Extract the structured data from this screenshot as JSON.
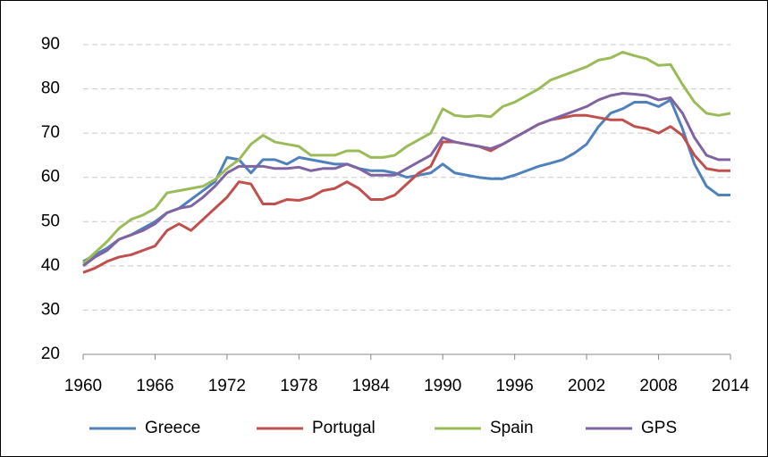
{
  "chart_data": {
    "type": "line",
    "x": [
      1960,
      1961,
      1962,
      1963,
      1964,
      1965,
      1966,
      1967,
      1968,
      1969,
      1970,
      1971,
      1972,
      1973,
      1974,
      1975,
      1976,
      1977,
      1978,
      1979,
      1980,
      1981,
      1982,
      1983,
      1984,
      1985,
      1986,
      1987,
      1988,
      1989,
      1990,
      1991,
      1992,
      1993,
      1994,
      1995,
      1996,
      1997,
      1998,
      1999,
      2000,
      2001,
      2002,
      2003,
      2004,
      2005,
      2006,
      2007,
      2008,
      2009,
      2010,
      2011,
      2012,
      2013,
      2014
    ],
    "series": [
      {
        "name": "Greece",
        "color": "#4f81bd",
        "values": [
          41,
          42.5,
          44,
          46,
          47,
          48.5,
          50,
          52,
          53,
          55,
          57,
          59,
          64.5,
          64,
          61,
          64,
          64,
          63,
          64.5,
          64,
          63.5,
          63,
          63,
          62,
          61.5,
          61.5,
          61,
          60,
          60.5,
          61,
          63,
          61,
          60.5,
          60,
          59.7,
          59.7,
          60.5,
          61.5,
          62.5,
          63.2,
          64,
          65.5,
          67.5,
          71.5,
          74.5,
          75.5,
          77,
          77,
          76,
          77.5,
          71,
          63,
          58,
          56,
          56
        ]
      },
      {
        "name": "Portugal",
        "color": "#c0504d",
        "values": [
          38.5,
          39.5,
          41,
          42,
          42.5,
          43.5,
          44.5,
          48,
          49.5,
          48,
          50.5,
          53,
          55.5,
          59,
          58.5,
          54,
          54,
          55,
          54.8,
          55.5,
          57,
          57.5,
          59,
          57.5,
          55,
          55,
          56,
          58.5,
          61,
          62.5,
          68,
          68,
          67.5,
          67,
          66,
          67.5,
          69,
          70.5,
          72,
          73,
          73.5,
          74,
          74,
          73.5,
          73,
          73,
          71.5,
          71,
          70,
          71.5,
          69.5,
          65,
          62,
          61.5,
          61.5
        ]
      },
      {
        "name": "Spain",
        "color": "#9bbb59",
        "values": [
          40.5,
          43,
          45.5,
          48.5,
          50.5,
          51.5,
          53,
          56.5,
          57,
          57.5,
          58,
          59.5,
          62,
          64,
          67.5,
          69.5,
          68,
          67.5,
          67,
          65,
          65,
          65,
          66,
          66,
          64.5,
          64.5,
          65,
          67,
          68.5,
          70,
          75.5,
          74,
          73.7,
          74,
          73.7,
          76,
          77,
          78.5,
          80,
          82,
          83,
          84,
          85,
          86.5,
          87,
          88.3,
          87.5,
          86.8,
          85.3,
          85.5,
          81,
          77,
          74.5,
          74,
          74.5
        ]
      },
      {
        "name": "GPS",
        "color": "#8064a2",
        "values": [
          40,
          42,
          43.5,
          46,
          47,
          48,
          49.5,
          52,
          53,
          53.5,
          55.5,
          58,
          61,
          62.5,
          62.5,
          62.5,
          62,
          62,
          62.3,
          61.5,
          62,
          62,
          63,
          62,
          60.5,
          60.5,
          60.5,
          62,
          63.5,
          65,
          69,
          68,
          67.5,
          67,
          66.5,
          67.5,
          69,
          70.5,
          72,
          73,
          74,
          75,
          76,
          77.5,
          78.5,
          79,
          78.8,
          78.5,
          77.5,
          78,
          74.5,
          69,
          65,
          64,
          64
        ]
      }
    ],
    "xlim": [
      1960,
      2014
    ],
    "xticks": [
      1960,
      1966,
      1972,
      1978,
      1984,
      1990,
      1996,
      2002,
      2008,
      2014
    ],
    "ylim": [
      20,
      90
    ],
    "yticks": [
      20,
      30,
      40,
      50,
      60,
      70,
      80,
      90
    ],
    "grid": true,
    "legend": "bottom"
  }
}
